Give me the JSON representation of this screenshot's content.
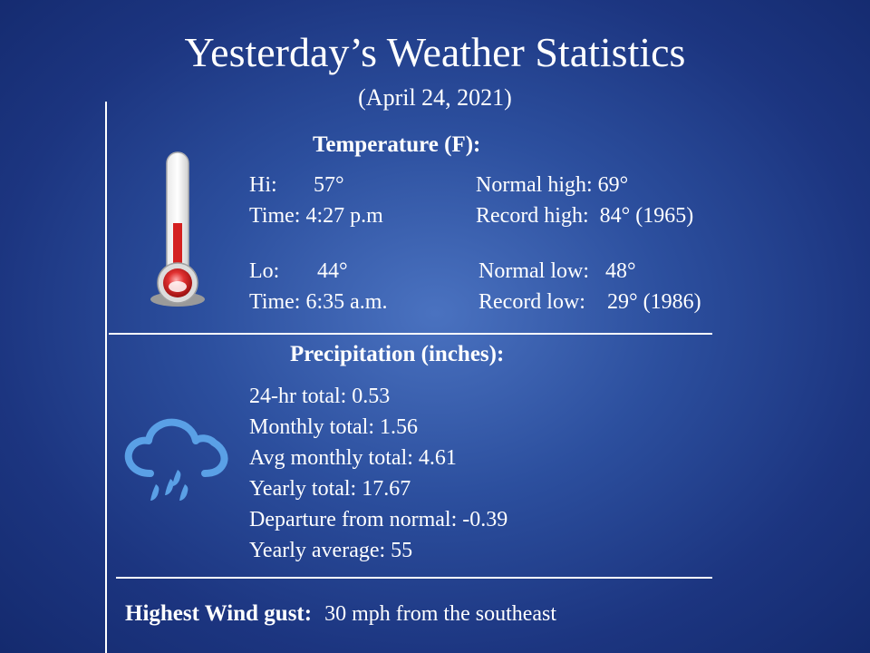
{
  "header": {
    "title": "Yesterday’s Weather Statistics",
    "date": "(April 24, 2021)"
  },
  "temperature": {
    "heading": "Temperature (F):",
    "hi_label": "Hi:",
    "hi_value": "57°",
    "hi_time": "Time: 4:27 p.m",
    "normal_high": "Normal high: 69°",
    "record_high": "Record high:  84° (1965)",
    "lo_label": "Lo:",
    "lo_value": "44°",
    "lo_time": "Time: 6:35 a.m.",
    "normal_low": "Normal low:   48°",
    "record_low": "Record low:    29° (1986)"
  },
  "precipitation": {
    "heading": "Precipitation (inches):",
    "items": [
      "24-hr total: 0.53",
      "Monthly total: 1.56",
      "Avg monthly total: 4.61",
      "Yearly total: 17.67",
      "Departure from normal: -0.39",
      "Yearly average: 55"
    ]
  },
  "wind": {
    "label": "Highest Wind gust:",
    "value": "30 mph from the southeast"
  },
  "icons": {
    "temperature": "thermometer-icon",
    "precipitation": "rain-cloud-icon"
  },
  "colors": {
    "background": "#2c4f9e",
    "text": "#ffffff",
    "thermometer_red": "#d42020",
    "rain_icon": "#5aa0e6"
  }
}
